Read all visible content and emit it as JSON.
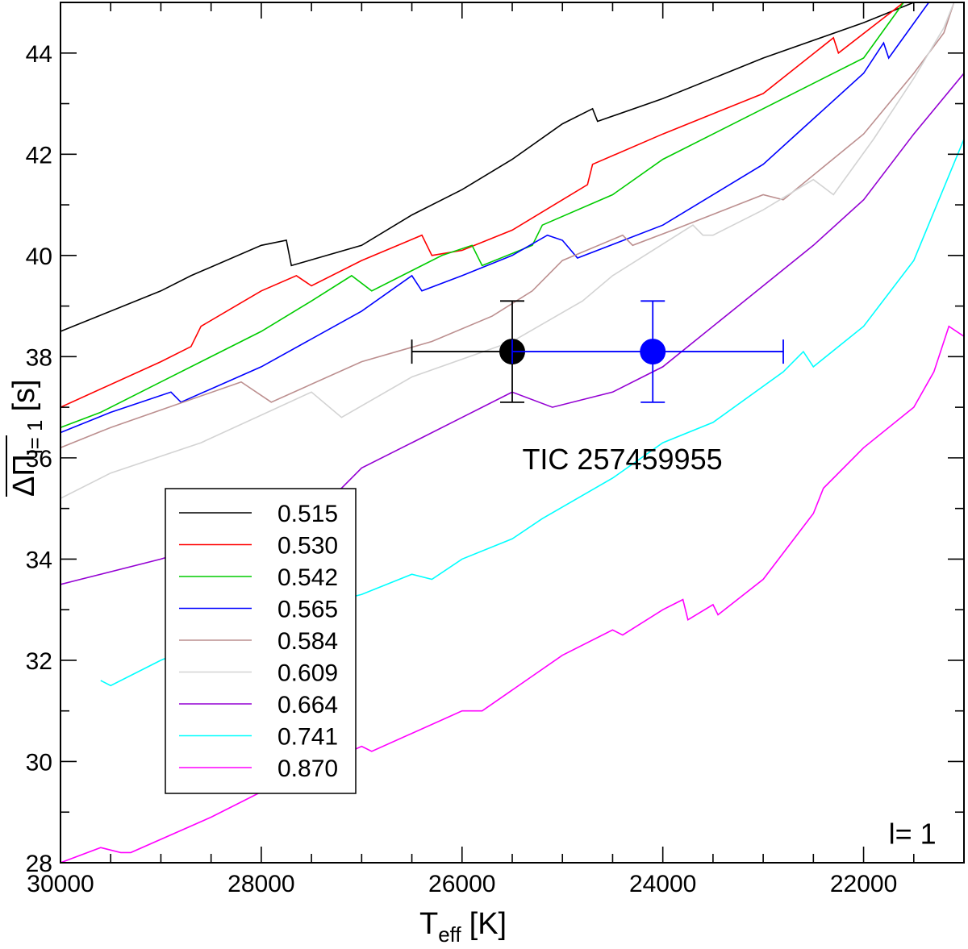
{
  "chart_data": {
    "type": "line",
    "title": "",
    "xlabel": {
      "main": "T",
      "sub": "eff",
      "unit": "[K]"
    },
    "ylabel": {
      "main": "ΔΠ",
      "sub": "l= 1",
      "unit": "[s]"
    },
    "xlim": [
      30000,
      21000
    ],
    "ylim": [
      28,
      45
    ],
    "x_ticks": [
      30000,
      28000,
      26000,
      24000,
      22000
    ],
    "x_tick_labels": [
      "30000",
      "28000",
      "26000",
      "24000",
      "22000"
    ],
    "y_ticks": [
      28,
      30,
      32,
      34,
      36,
      38,
      40,
      42,
      44
    ],
    "y_tick_labels": [
      "28",
      "30",
      "32",
      "34",
      "36",
      "38",
      "40",
      "42",
      "44"
    ],
    "grid": false,
    "legend_position": "bottom-left",
    "annotation_degree": "l= 1",
    "series": [
      {
        "name": "0.515",
        "color": "#000000",
        "x": [
          30000,
          29000,
          28700,
          28000,
          27750,
          27700,
          27000,
          26500,
          26000,
          25500,
          25000,
          24700,
          24650,
          24000,
          23000,
          22000,
          21500,
          21300
        ],
        "y": [
          38.5,
          39.3,
          39.6,
          40.2,
          40.3,
          39.8,
          40.2,
          40.8,
          41.3,
          41.9,
          42.6,
          42.9,
          42.65,
          43.1,
          43.9,
          44.6,
          45.0,
          45.1
        ]
      },
      {
        "name": "0.530",
        "color": "#ff0000",
        "x": [
          30000,
          29000,
          28700,
          28600,
          28000,
          27650,
          27500,
          27000,
          26400,
          26300,
          26000,
          25500,
          25000,
          24750,
          24700,
          24000,
          23000,
          22300,
          22250,
          21600
        ],
        "y": [
          37.0,
          37.9,
          38.2,
          38.6,
          39.3,
          39.6,
          39.4,
          39.9,
          40.4,
          40.0,
          40.1,
          40.5,
          41.1,
          41.4,
          41.8,
          42.4,
          43.2,
          44.3,
          44.0,
          45.0
        ]
      },
      {
        "name": "0.542",
        "color": "#00cc00",
        "x": [
          30000,
          29600,
          29000,
          28000,
          27500,
          27100,
          26900,
          26200,
          25900,
          25800,
          25300,
          25200,
          24500,
          24000,
          23000,
          22000,
          21600
        ],
        "y": [
          36.6,
          36.9,
          37.5,
          38.5,
          39.1,
          39.6,
          39.3,
          40.0,
          40.2,
          39.8,
          40.2,
          40.6,
          41.2,
          41.9,
          42.9,
          43.9,
          45.0
        ]
      },
      {
        "name": "0.565",
        "color": "#0000ff",
        "x": [
          30000,
          29500,
          28900,
          28800,
          28000,
          27000,
          26500,
          26400,
          26000,
          25500,
          25150,
          25000,
          24850,
          24000,
          23000,
          22500,
          22000,
          21800,
          21750,
          21350
        ],
        "y": [
          36.5,
          36.9,
          37.3,
          37.1,
          37.8,
          38.9,
          39.6,
          39.3,
          39.6,
          40.0,
          40.4,
          40.3,
          39.95,
          40.6,
          41.8,
          42.7,
          43.6,
          44.2,
          43.9,
          45.0
        ]
      },
      {
        "name": "0.584",
        "color": "#bc8f8f",
        "x": [
          30000,
          29500,
          28200,
          27900,
          27000,
          26300,
          25700,
          25300,
          25000,
          24400,
          24300,
          23900,
          23000,
          22800,
          22000,
          21500,
          21200,
          21100
        ],
        "y": [
          36.2,
          36.6,
          37.5,
          37.1,
          37.9,
          38.3,
          38.8,
          39.3,
          39.9,
          40.4,
          40.2,
          40.5,
          41.2,
          41.1,
          42.4,
          43.6,
          44.4,
          45.0
        ]
      },
      {
        "name": "0.609",
        "color": "#d3d3d3",
        "x": [
          30000,
          29500,
          28600,
          27500,
          27200,
          26500,
          25500,
          24800,
          24500,
          23700,
          23600,
          23500,
          23000,
          22500,
          22300,
          21900,
          21500,
          21200,
          21100
        ],
        "y": [
          35.2,
          35.7,
          36.3,
          37.3,
          36.8,
          37.6,
          38.3,
          39.1,
          39.6,
          40.6,
          40.4,
          40.4,
          40.9,
          41.5,
          41.2,
          42.3,
          43.5,
          44.5,
          45.0
        ]
      },
      {
        "name": "0.664",
        "color": "#9400d3",
        "x": [
          30000,
          29800,
          29000,
          28000,
          27200,
          27000,
          26500,
          26000,
          25500,
          25100,
          24500,
          24000,
          23000,
          22500,
          22000,
          21500,
          21000
        ],
        "y": [
          33.5,
          33.6,
          34.0,
          34.6,
          35.4,
          35.8,
          36.3,
          36.8,
          37.3,
          37.0,
          37.3,
          37.8,
          39.4,
          40.2,
          41.1,
          42.4,
          43.6
        ]
      },
      {
        "name": "0.741",
        "color": "#00ffff",
        "x": [
          29600,
          29500,
          29000,
          28000,
          27000,
          26500,
          26300,
          26000,
          25500,
          25200,
          24500,
          24000,
          23500,
          22800,
          22600,
          22500,
          22000,
          21500,
          21000
        ],
        "y": [
          31.6,
          31.5,
          32.0,
          32.8,
          33.3,
          33.7,
          33.6,
          34.0,
          34.4,
          34.8,
          35.6,
          36.3,
          36.7,
          37.7,
          38.1,
          37.8,
          38.6,
          39.9,
          42.3
        ]
      },
      {
        "name": "0.870",
        "color": "#ff00ff",
        "x": [
          30000,
          29600,
          29400,
          29300,
          28500,
          28000,
          27000,
          26900,
          26000,
          25800,
          25000,
          24500,
          24400,
          24000,
          23800,
          23750,
          23500,
          23450,
          23000,
          22500,
          22400,
          22000,
          21500,
          21300,
          21150,
          21000
        ],
        "y": [
          28.0,
          28.3,
          28.2,
          28.2,
          28.9,
          29.4,
          30.3,
          30.2,
          31.0,
          31.0,
          32.1,
          32.6,
          32.5,
          33.0,
          33.2,
          32.8,
          33.1,
          32.9,
          33.6,
          34.9,
          35.4,
          36.2,
          37.0,
          37.7,
          38.6,
          38.4
        ]
      }
    ],
    "observations": [
      {
        "name": "TIC 257459955",
        "color": "#000000",
        "x": 25500,
        "y": 38.1,
        "x_err": [
          26500,
          25500
        ],
        "y_err": [
          37.1,
          39.1
        ]
      },
      {
        "name": "TIC 257459955 (blue)",
        "color": "#0000ff",
        "x": 24100,
        "y": 38.1,
        "x_err": [
          25500,
          22800
        ],
        "y_err": [
          37.1,
          39.1
        ]
      }
    ],
    "annotations": [
      {
        "text": "TIC 257459955",
        "x": 25400,
        "y": 36.0
      },
      {
        "text": "l= 1",
        "x": 21750,
        "y": 28.6
      }
    ]
  }
}
